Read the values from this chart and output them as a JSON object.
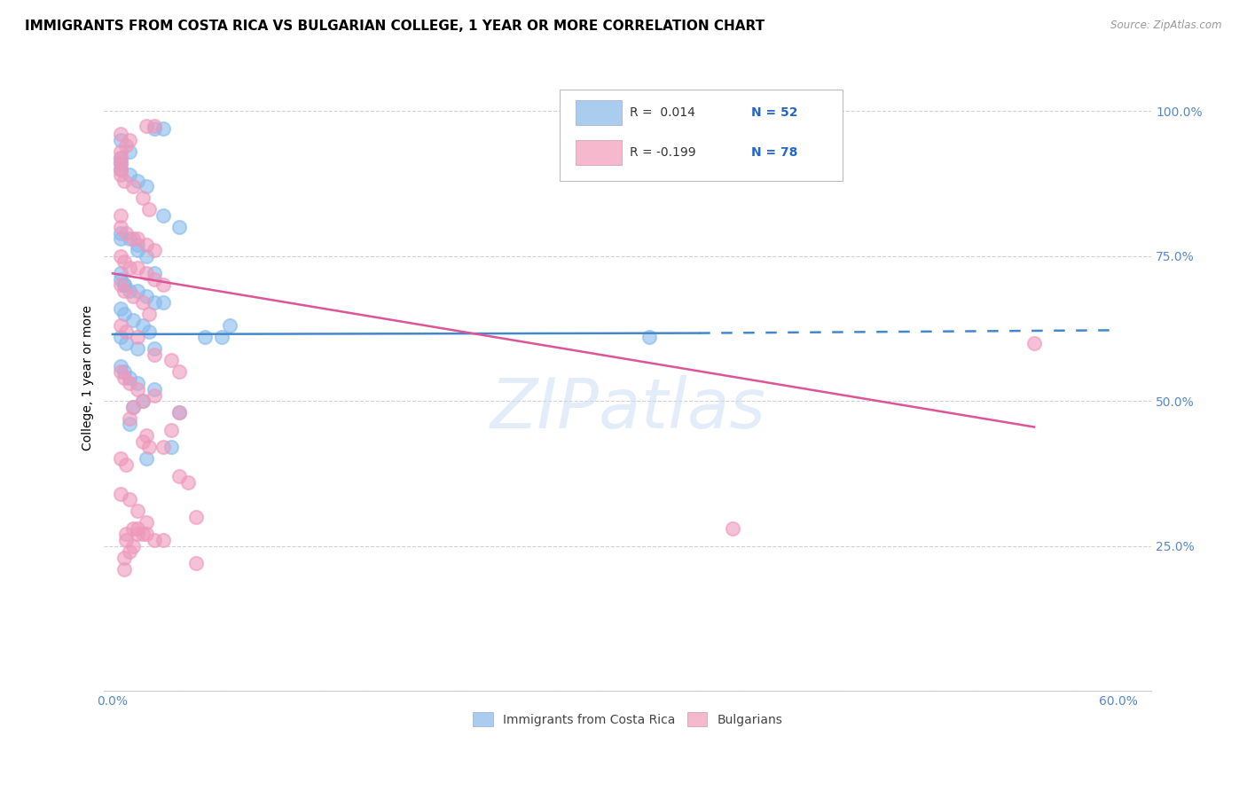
{
  "title": "IMMIGRANTS FROM COSTA RICA VS BULGARIAN COLLEGE, 1 YEAR OR MORE CORRELATION CHART",
  "source": "Source: ZipAtlas.com",
  "xlabel_ticks_labels": [
    "0.0%",
    "",
    "",
    "",
    "",
    "",
    "60.0%"
  ],
  "xlabel_vals": [
    0.0,
    0.1,
    0.2,
    0.3,
    0.4,
    0.5,
    0.6
  ],
  "ylabel": "College, 1 year or more",
  "ylabel_ticks": [
    "",
    "25.0%",
    "50.0%",
    "75.0%",
    "100.0%"
  ],
  "ylabel_vals": [
    0.0,
    0.25,
    0.5,
    0.75,
    1.0
  ],
  "xlim": [
    -0.005,
    0.62
  ],
  "ylim": [
    0.0,
    1.08
  ],
  "watermark": "ZIPatlas",
  "legend_r1": "R =  0.014",
  "legend_n1": "N = 52",
  "legend_r2": "R = -0.199",
  "legend_n2": "N = 78",
  "color_blue": "#88bbee",
  "color_pink": "#ee99bb",
  "line_color_blue": "#4488cc",
  "line_color_pink": "#dd5599",
  "legend_box_blue": "#aaccee",
  "legend_box_pink": "#f5b8cc",
  "blue_scatter_x": [
    0.025,
    0.03,
    0.005,
    0.01,
    0.005,
    0.005,
    0.005,
    0.01,
    0.015,
    0.02,
    0.03,
    0.04,
    0.005,
    0.005,
    0.01,
    0.015,
    0.015,
    0.02,
    0.025,
    0.005,
    0.005,
    0.007,
    0.007,
    0.01,
    0.015,
    0.02,
    0.025,
    0.03,
    0.005,
    0.007,
    0.012,
    0.018,
    0.022,
    0.005,
    0.008,
    0.015,
    0.025,
    0.32,
    0.055,
    0.065,
    0.07,
    0.005,
    0.007,
    0.01,
    0.015,
    0.025,
    0.018,
    0.012,
    0.04,
    0.01,
    0.035,
    0.02
  ],
  "blue_scatter_y": [
    0.97,
    0.97,
    0.95,
    0.93,
    0.92,
    0.91,
    0.9,
    0.89,
    0.88,
    0.87,
    0.82,
    0.8,
    0.79,
    0.78,
    0.78,
    0.77,
    0.76,
    0.75,
    0.72,
    0.72,
    0.71,
    0.7,
    0.7,
    0.69,
    0.69,
    0.68,
    0.67,
    0.67,
    0.66,
    0.65,
    0.64,
    0.63,
    0.62,
    0.61,
    0.6,
    0.59,
    0.59,
    0.61,
    0.61,
    0.61,
    0.63,
    0.56,
    0.55,
    0.54,
    0.53,
    0.52,
    0.5,
    0.49,
    0.48,
    0.46,
    0.42,
    0.4
  ],
  "pink_scatter_x": [
    0.02,
    0.025,
    0.005,
    0.01,
    0.008,
    0.005,
    0.005,
    0.005,
    0.005,
    0.005,
    0.007,
    0.012,
    0.018,
    0.022,
    0.005,
    0.005,
    0.008,
    0.012,
    0.015,
    0.02,
    0.025,
    0.005,
    0.007,
    0.01,
    0.015,
    0.02,
    0.025,
    0.03,
    0.005,
    0.007,
    0.012,
    0.018,
    0.022,
    0.005,
    0.008,
    0.015,
    0.025,
    0.035,
    0.04,
    0.005,
    0.007,
    0.01,
    0.015,
    0.025,
    0.018,
    0.012,
    0.04,
    0.01,
    0.035,
    0.02,
    0.55,
    0.018,
    0.022,
    0.03,
    0.005,
    0.008,
    0.04,
    0.045,
    0.005,
    0.01,
    0.015,
    0.05,
    0.02,
    0.015,
    0.015,
    0.025,
    0.012,
    0.01,
    0.007,
    0.05,
    0.007,
    0.008,
    0.37,
    0.012,
    0.018,
    0.02,
    0.03,
    0.008
  ],
  "pink_scatter_y": [
    0.975,
    0.975,
    0.96,
    0.95,
    0.94,
    0.93,
    0.92,
    0.91,
    0.9,
    0.89,
    0.88,
    0.87,
    0.85,
    0.83,
    0.82,
    0.8,
    0.79,
    0.78,
    0.78,
    0.77,
    0.76,
    0.75,
    0.74,
    0.73,
    0.73,
    0.72,
    0.71,
    0.7,
    0.7,
    0.69,
    0.68,
    0.67,
    0.65,
    0.63,
    0.62,
    0.61,
    0.58,
    0.57,
    0.55,
    0.55,
    0.54,
    0.53,
    0.52,
    0.51,
    0.5,
    0.49,
    0.48,
    0.47,
    0.45,
    0.44,
    0.6,
    0.43,
    0.42,
    0.42,
    0.4,
    0.39,
    0.37,
    0.36,
    0.34,
    0.33,
    0.31,
    0.3,
    0.29,
    0.28,
    0.27,
    0.26,
    0.25,
    0.24,
    0.23,
    0.22,
    0.21,
    0.27,
    0.28,
    0.28,
    0.27,
    0.27,
    0.26,
    0.26
  ],
  "blue_solid_line_x": [
    0.0,
    0.35
  ],
  "blue_solid_line_y": [
    0.615,
    0.617
  ],
  "blue_dash_line_x": [
    0.35,
    0.6
  ],
  "blue_dash_line_y": [
    0.617,
    0.622
  ],
  "pink_solid_line_x": [
    0.0,
    0.55
  ],
  "pink_solid_line_y": [
    0.72,
    0.455
  ],
  "bg_color": "#ffffff",
  "tick_color": "#5588cc",
  "title_fontsize": 11,
  "axis_label_fontsize": 10,
  "tick_fontsize": 10,
  "scatter_size": 120,
  "scatter_alpha": 0.6
}
